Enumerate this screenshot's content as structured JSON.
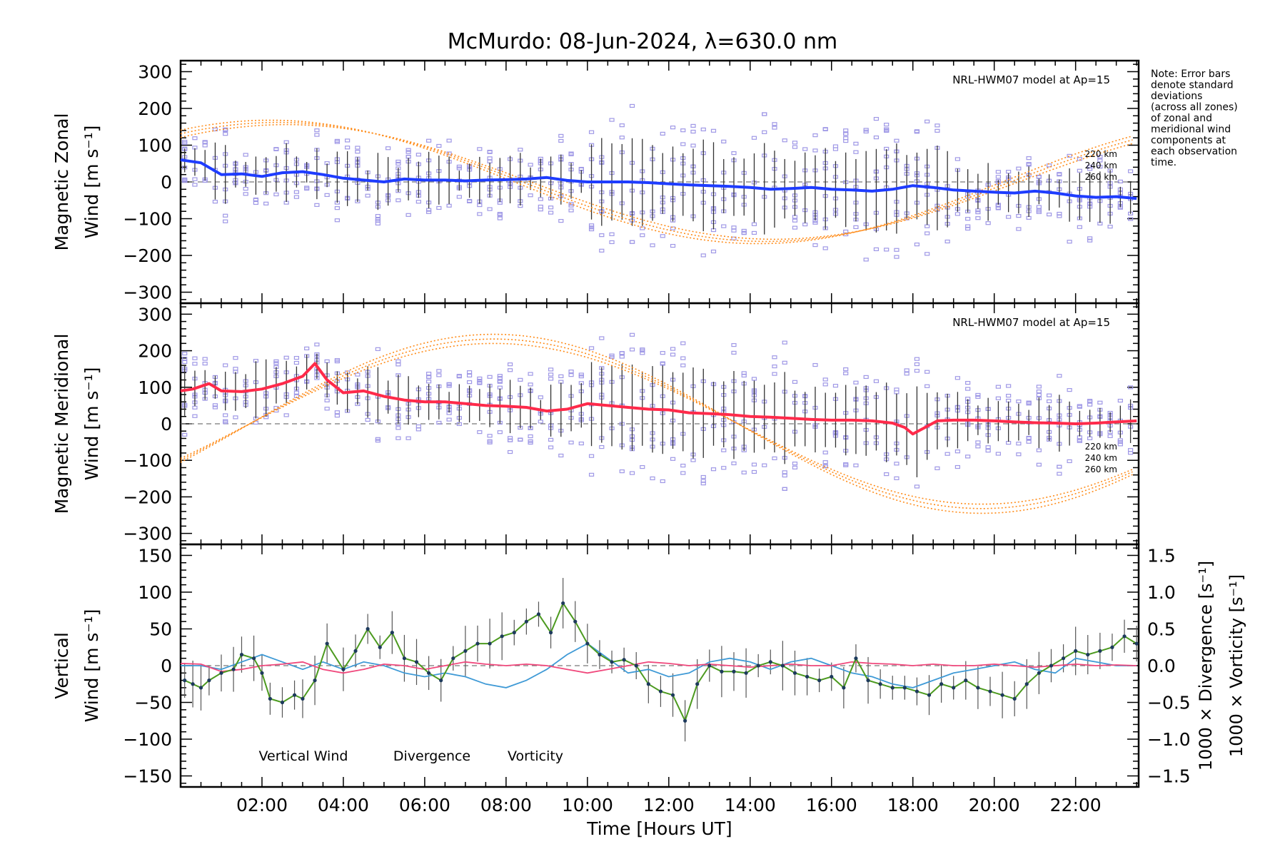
{
  "title": "McMurdo: 08-Jun-2024, λ=630.0 nm",
  "note": [
    "Note: Error bars",
    "denote standard",
    "deviations",
    "(across all zones)",
    "of zonal and",
    "meridional wind",
    "components at",
    "each observation",
    "time."
  ],
  "colors": {
    "zonal": "#1e3cff",
    "meridional": "#ff2a4a",
    "vertical": "#4c9a1f",
    "divergence": "#3f9ad6",
    "vorticity": "#f0487c",
    "model": "#ff8c1a",
    "zone_points": "#9f98e6",
    "error_bar": "#000000"
  },
  "chart_data": [
    {
      "type": "line",
      "panel": "zonal",
      "ylabel": [
        "Magnetic Zonal",
        "Wind [m s⁻¹]"
      ],
      "ylim": [
        -330,
        330
      ],
      "yticks": [
        300,
        200,
        100,
        0,
        -100,
        -200,
        -300
      ],
      "model_label": "NRL-HWM07 model at Ap=15",
      "model_alt_labels": [
        "220 km",
        "240 km",
        "260 km"
      ],
      "series": [
        {
          "name": "Zonal wind",
          "x": [
            0.0,
            0.5,
            1.0,
            1.5,
            2.0,
            2.5,
            3.0,
            3.5,
            4.0,
            4.5,
            5.0,
            5.5,
            6.0,
            6.5,
            7.0,
            7.5,
            8.0,
            8.5,
            9.0,
            9.5,
            10.0,
            10.5,
            11.0,
            11.5,
            12.0,
            12.5,
            13.0,
            13.5,
            14.0,
            14.5,
            15.0,
            15.5,
            16.0,
            16.5,
            17.0,
            17.5,
            18.0,
            18.5,
            19.0,
            19.5,
            20.0,
            20.5,
            21.0,
            21.5,
            22.0,
            22.5,
            23.0,
            23.5
          ],
          "values": [
            60,
            52,
            20,
            22,
            15,
            25,
            28,
            20,
            10,
            5,
            0,
            8,
            5,
            5,
            3,
            5,
            6,
            8,
            12,
            4,
            0,
            0,
            0,
            -2,
            -5,
            -8,
            -10,
            -12,
            -15,
            -20,
            -18,
            -15,
            -20,
            -22,
            -25,
            -20,
            -10,
            -15,
            -22,
            -25,
            -28,
            -30,
            -25,
            -30,
            -38,
            -42,
            -40,
            -45
          ]
        }
      ],
      "model": [
        {
          "alt": "220 km",
          "peak_x": 2.2,
          "amplitude": 168
        },
        {
          "alt": "240 km",
          "peak_x": 2.4,
          "amplitude": 162
        },
        {
          "alt": "260 km",
          "peak_x": 2.6,
          "amplitude": 156
        }
      ]
    },
    {
      "type": "line",
      "panel": "meridional",
      "ylabel": [
        "Magnetic Meridional",
        "Wind [m s⁻¹]"
      ],
      "ylim": [
        -330,
        330
      ],
      "yticks": [
        300,
        200,
        100,
        0,
        -100,
        -200,
        -300
      ],
      "model_label": "NRL-HWM07 model at Ap=15",
      "model_alt_labels": [
        "220 km",
        "240 km",
        "260 km"
      ],
      "series": [
        {
          "name": "Meridional wind",
          "x": [
            0.0,
            0.3,
            0.7,
            1.0,
            1.5,
            2.0,
            2.5,
            3.0,
            3.3,
            3.6,
            4.0,
            4.5,
            5.0,
            5.5,
            6.0,
            6.5,
            7.0,
            7.5,
            8.0,
            8.5,
            9.0,
            9.5,
            10.0,
            10.5,
            11.0,
            11.5,
            12.0,
            12.5,
            13.0,
            13.5,
            14.0,
            14.5,
            15.0,
            15.5,
            16.0,
            16.5,
            17.0,
            17.5,
            17.8,
            18.0,
            18.3,
            18.6,
            19.0,
            19.5,
            20.0,
            20.5,
            21.0,
            21.5,
            22.0,
            22.5,
            23.0,
            23.5
          ],
          "values": [
            90,
            95,
            110,
            90,
            88,
            95,
            110,
            130,
            165,
            120,
            85,
            90,
            75,
            65,
            60,
            60,
            55,
            50,
            48,
            45,
            35,
            40,
            55,
            50,
            45,
            40,
            38,
            30,
            28,
            25,
            20,
            18,
            15,
            12,
            10,
            10,
            8,
            2,
            -10,
            -28,
            -10,
            8,
            10,
            10,
            8,
            5,
            3,
            2,
            0,
            2,
            5,
            8
          ]
        }
      ],
      "model": [
        {
          "alt": "220 km",
          "peak_x": 7.7,
          "amplitude": 245
        },
        {
          "alt": "240 km",
          "peak_x": 7.7,
          "amplitude": 232
        },
        {
          "alt": "260 km",
          "peak_x": 7.7,
          "amplitude": 220
        }
      ]
    },
    {
      "type": "line",
      "panel": "vertical",
      "ylabel": [
        "Vertical",
        "Wind [m s⁻¹]"
      ],
      "ylim": [
        -165,
        165
      ],
      "yticks": [
        150,
        100,
        50,
        0,
        -50,
        -100,
        -150
      ],
      "y2label": [
        "1000 × Divergence [s⁻¹]",
        "1000 × Vorticity [s⁻¹]"
      ],
      "y2lim": [
        -1.65,
        1.65
      ],
      "y2ticks": [
        1.5,
        1.0,
        0.5,
        0.0,
        -0.5,
        -1.0,
        -1.5
      ],
      "legend": [
        "Vertical Wind",
        "Divergence",
        "Vorticity"
      ],
      "xlabel": "Time [Hours UT]",
      "xlim": [
        0,
        23.55
      ],
      "xticks": [
        "02:00",
        "04:00",
        "06:00",
        "08:00",
        "10:00",
        "12:00",
        "14:00",
        "16:00",
        "18:00",
        "20:00",
        "22:00"
      ],
      "xtick_values": [
        2,
        4,
        6,
        8,
        10,
        12,
        14,
        16,
        18,
        20,
        22
      ],
      "series": [
        {
          "name": "Vertical Wind",
          "x": [
            0.1,
            0.3,
            0.5,
            0.7,
            1.0,
            1.3,
            1.5,
            1.8,
            2.0,
            2.2,
            2.5,
            2.8,
            3.0,
            3.3,
            3.6,
            4.0,
            4.3,
            4.6,
            4.9,
            5.2,
            5.5,
            5.8,
            6.1,
            6.4,
            6.7,
            7.0,
            7.3,
            7.6,
            7.9,
            8.2,
            8.5,
            8.8,
            9.1,
            9.4,
            9.7,
            10.0,
            10.3,
            10.6,
            10.9,
            11.2,
            11.5,
            11.8,
            12.1,
            12.4,
            12.7,
            13.0,
            13.3,
            13.6,
            13.9,
            14.2,
            14.5,
            14.8,
            15.1,
            15.4,
            15.7,
            16.0,
            16.3,
            16.6,
            16.9,
            17.2,
            17.5,
            17.8,
            18.1,
            18.4,
            18.7,
            19.0,
            19.3,
            19.6,
            19.9,
            20.2,
            20.5,
            20.8,
            21.1,
            21.4,
            21.7,
            22.0,
            22.3,
            22.6,
            22.9,
            23.2,
            23.5
          ],
          "values": [
            -20,
            -25,
            -30,
            -20,
            -10,
            -5,
            15,
            10,
            -10,
            -45,
            -50,
            -40,
            -45,
            -20,
            30,
            -5,
            20,
            50,
            25,
            45,
            10,
            5,
            -10,
            -20,
            10,
            20,
            30,
            30,
            40,
            45,
            60,
            70,
            45,
            85,
            60,
            30,
            15,
            5,
            8,
            0,
            -25,
            -35,
            -40,
            -75,
            -25,
            0,
            -8,
            -8,
            -10,
            0,
            5,
            0,
            -10,
            -15,
            -20,
            -15,
            -30,
            10,
            -20,
            -25,
            -30,
            -30,
            -35,
            -40,
            -25,
            -30,
            -20,
            -30,
            -35,
            -40,
            -45,
            -25,
            -10,
            0,
            10,
            20,
            15,
            20,
            25,
            40,
            30
          ]
        },
        {
          "name": "Divergence",
          "x": [
            0,
            0.5,
            1.0,
            1.5,
            2.0,
            2.5,
            3.0,
            3.5,
            4.0,
            4.5,
            5.0,
            5.5,
            6.0,
            6.5,
            7.0,
            7.5,
            8.0,
            8.5,
            9.0,
            9.5,
            10.0,
            10.5,
            11.0,
            11.5,
            12.0,
            12.5,
            13.0,
            13.5,
            14.0,
            14.5,
            15.0,
            15.5,
            16.0,
            16.5,
            17.0,
            17.5,
            18.0,
            18.5,
            19.0,
            19.5,
            20.0,
            20.5,
            21.0,
            21.5,
            22.0,
            22.5,
            23.0,
            23.5
          ],
          "values": [
            0.0,
            0.0,
            -0.05,
            0.05,
            0.15,
            0.05,
            -0.05,
            0.05,
            -0.05,
            0.05,
            0.0,
            -0.1,
            -0.15,
            -0.1,
            -0.15,
            -0.25,
            -0.3,
            -0.2,
            -0.05,
            0.15,
            0.3,
            0.1,
            -0.1,
            -0.05,
            -0.15,
            -0.1,
            0.05,
            0.1,
            0.05,
            -0.05,
            0.05,
            0.1,
            0.0,
            -0.1,
            -0.15,
            -0.25,
            -0.3,
            -0.2,
            -0.1,
            -0.05,
            0.0,
            0.05,
            -0.05,
            -0.1,
            0.1,
            0.05,
            0.0,
            0.0
          ]
        },
        {
          "name": "Vorticity",
          "x": [
            0,
            0.5,
            1.0,
            1.5,
            2.0,
            2.5,
            3.0,
            3.5,
            4.0,
            4.5,
            5.0,
            5.5,
            6.0,
            6.5,
            7.0,
            7.5,
            8.0,
            8.5,
            9.0,
            9.5,
            10.0,
            10.5,
            11.0,
            11.5,
            12.0,
            12.5,
            13.0,
            13.5,
            14.0,
            14.5,
            15.0,
            15.5,
            16.0,
            16.5,
            17.0,
            17.5,
            18.0,
            18.5,
            19.0,
            19.5,
            20.0,
            20.5,
            21.0,
            21.5,
            22.0,
            22.5,
            23.0,
            23.5
          ],
          "values": [
            0.03,
            0.02,
            -0.08,
            -0.05,
            0.0,
            0.02,
            0.05,
            -0.05,
            -0.1,
            -0.05,
            0.02,
            0.0,
            -0.05,
            0.0,
            0.05,
            0.02,
            0.0,
            0.02,
            0.0,
            -0.05,
            -0.1,
            -0.05,
            0.0,
            0.05,
            0.03,
            0.0,
            0.02,
            0.0,
            -0.02,
            0.0,
            0.02,
            0.0,
            0.0,
            0.05,
            0.03,
            0.02,
            0.0,
            0.02,
            0.0,
            0.0,
            0.02,
            0.0,
            -0.02,
            0.0,
            0.02,
            0.0,
            0.01,
            0.0
          ]
        }
      ]
    }
  ]
}
